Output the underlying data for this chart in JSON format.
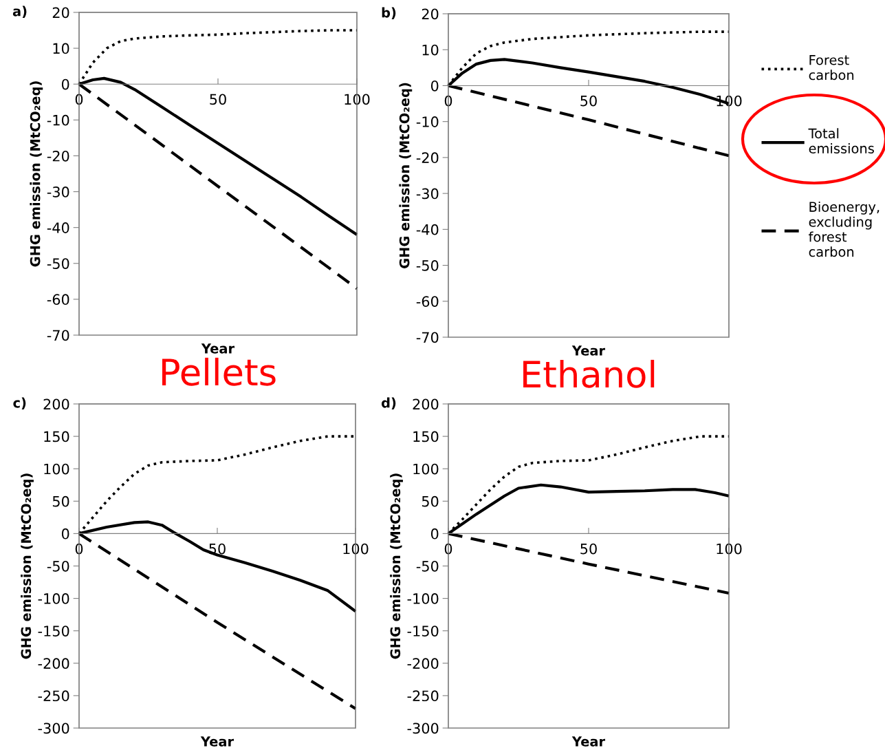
{
  "chart_data": [
    {
      "type": "line",
      "title": "a)",
      "ylabel": "GHG emission (MtCO₂eq)",
      "xlabel": "Year",
      "xlim": [
        0,
        100
      ],
      "xticks": [
        0,
        50,
        100
      ],
      "ylim": [
        -70,
        20
      ],
      "yticks": [
        -70,
        -60,
        -50,
        -40,
        -30,
        -20,
        -10,
        0,
        10,
        20
      ],
      "grid": false,
      "annotations": [
        "Pellets"
      ],
      "series": [
        {
          "color": "#000000",
          "line_style": "dotted",
          "x": [
            0,
            5,
            10,
            15,
            20,
            30,
            40,
            50,
            60,
            70,
            80,
            90,
            100
          ],
          "values": [
            0,
            6,
            10,
            12,
            12.7,
            13.3,
            13.6,
            13.8,
            14.2,
            14.5,
            14.8,
            15,
            15
          ]
        },
        {
          "color": "#000000",
          "line_style": "solid",
          "x": [
            0,
            5,
            9,
            15,
            20,
            30,
            40,
            50,
            60,
            70,
            80,
            90,
            100
          ],
          "values": [
            0,
            1.2,
            1.6,
            0.5,
            -1.5,
            -6.5,
            -11.5,
            -16.5,
            -21.5,
            -26.5,
            -31.5,
            -36.8,
            -42
          ]
        },
        {
          "color": "#000000",
          "line_style": "dashed",
          "x": [
            0,
            25,
            50,
            75,
            100
          ],
          "values": [
            0,
            -14.2,
            -28.5,
            -42.7,
            -57
          ]
        }
      ]
    },
    {
      "type": "line",
      "title": "b)",
      "ylabel": "GHG emission (MtCO₂eq)",
      "xlabel": "Year",
      "xlim": [
        0,
        100
      ],
      "xticks": [
        0,
        50,
        100
      ],
      "ylim": [
        -70,
        20
      ],
      "yticks": [
        -70,
        -60,
        -50,
        -40,
        -30,
        -20,
        -10,
        0,
        10,
        20
      ],
      "grid": false,
      "legend": "right",
      "annotations": [
        "Ethanol"
      ],
      "series": [
        {
          "name": "Forest carbon",
          "color": "#000000",
          "line_style": "dotted",
          "x": [
            0,
            5,
            10,
            15,
            20,
            30,
            40,
            50,
            60,
            70,
            80,
            90,
            100
          ],
          "values": [
            0,
            5,
            9,
            11,
            12,
            13,
            13.5,
            14,
            14.3,
            14.6,
            14.8,
            15,
            15
          ]
        },
        {
          "name": "Total emissions",
          "color": "#000000",
          "line_style": "solid",
          "x": [
            0,
            5,
            10,
            15,
            20,
            30,
            40,
            50,
            60,
            70,
            80,
            90,
            100
          ],
          "values": [
            0,
            3.5,
            6,
            7,
            7.3,
            6.3,
            5,
            3.8,
            2.5,
            1.2,
            -0.5,
            -2.5,
            -5
          ]
        },
        {
          "name": "Bioenergy, excluding forest carbon",
          "color": "#000000",
          "line_style": "dashed",
          "x": [
            0,
            50,
            100
          ],
          "values": [
            0,
            -9.5,
            -19.5
          ]
        }
      ]
    },
    {
      "type": "line",
      "title": "c)",
      "ylabel": "GHG emission (MtCO₂eq)",
      "xlabel": "Year",
      "xlim": [
        0,
        100
      ],
      "xticks": [
        0,
        50,
        100
      ],
      "ylim": [
        -300,
        200
      ],
      "yticks": [
        -300,
        -250,
        -200,
        -150,
        -100,
        -50,
        0,
        50,
        100,
        150,
        200
      ],
      "grid": false,
      "series": [
        {
          "color": "#000000",
          "line_style": "dotted",
          "x": [
            0,
            5,
            10,
            15,
            20,
            25,
            30,
            40,
            50,
            60,
            70,
            80,
            90,
            100
          ],
          "values": [
            0,
            25,
            50,
            72,
            92,
            105,
            110,
            112,
            113,
            122,
            133,
            143,
            150,
            150
          ]
        },
        {
          "color": "#000000",
          "line_style": "solid",
          "x": [
            0,
            10,
            20,
            25,
            30,
            35,
            40,
            45,
            50,
            60,
            70,
            80,
            90,
            100
          ],
          "values": [
            0,
            10,
            17,
            18,
            13,
            0,
            -12,
            -25,
            -33,
            -45,
            -58,
            -72,
            -88,
            -120
          ]
        },
        {
          "color": "#000000",
          "line_style": "dashed",
          "x": [
            0,
            50,
            100
          ],
          "values": [
            0,
            -137,
            -270
          ]
        }
      ]
    },
    {
      "type": "line",
      "title": "d)",
      "ylabel": "GHG emission (MtCO₂eq)",
      "xlabel": "Year",
      "xlim": [
        0,
        100
      ],
      "xticks": [
        0,
        50,
        100
      ],
      "ylim": [
        -300,
        200
      ],
      "yticks": [
        -300,
        -250,
        -200,
        -150,
        -100,
        -50,
        0,
        50,
        100,
        150,
        200
      ],
      "grid": false,
      "series": [
        {
          "color": "#000000",
          "line_style": "dotted",
          "x": [
            0,
            5,
            10,
            15,
            20,
            25,
            30,
            40,
            50,
            60,
            70,
            80,
            90,
            100
          ],
          "values": [
            0,
            22,
            45,
            68,
            88,
            103,
            109,
            112,
            113,
            122,
            133,
            143,
            150,
            150
          ]
        },
        {
          "color": "#000000",
          "line_style": "solid",
          "x": [
            0,
            10,
            20,
            25,
            33,
            40,
            50,
            60,
            70,
            80,
            88,
            95,
            100
          ],
          "values": [
            0,
            30,
            58,
            70,
            75,
            72,
            64,
            65,
            66,
            68,
            68,
            63,
            58
          ]
        },
        {
          "color": "#000000",
          "line_style": "dashed",
          "x": [
            0,
            50,
            100
          ],
          "values": [
            0,
            -47,
            -92
          ]
        }
      ]
    }
  ]
}
